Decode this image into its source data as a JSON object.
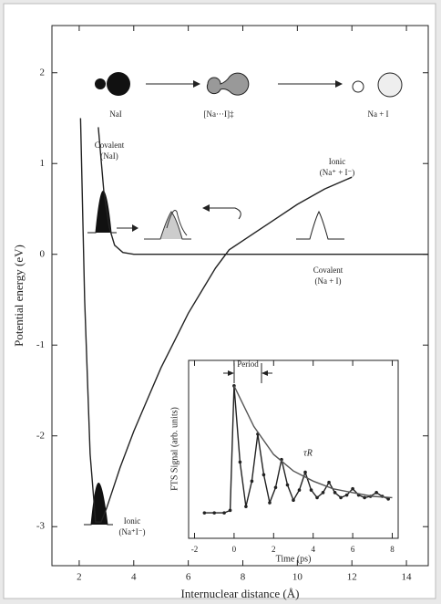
{
  "chart_data": [
    {
      "type": "line",
      "xlabel": "Internuclear distance (Å)",
      "ylabel": "Potential energy (eV)",
      "xlim": [
        1,
        14.8
      ],
      "ylim": [
        -3.43,
        2.52
      ],
      "xticks": [
        2,
        4,
        6,
        8,
        10,
        12,
        14
      ],
      "yticks": [
        -3,
        -2,
        -1,
        0,
        1,
        2
      ],
      "series": [
        {
          "color": "#222222",
          "x": [
            2.05,
            2.2,
            2.4,
            2.6,
            2.8,
            3.0,
            3.5,
            4.0,
            4.5,
            5.0,
            5.5,
            6.0,
            6.5,
            7.0,
            7.5,
            8,
            9,
            10,
            11,
            12
          ],
          "values": [
            1.5,
            -0.5,
            -2.2,
            -2.95,
            -2.95,
            -2.8,
            -2.35,
            -1.95,
            -1.6,
            -1.25,
            -0.95,
            -0.65,
            -0.4,
            -0.15,
            0.05,
            0.15,
            0.35,
            0.55,
            0.72,
            0.85
          ]
        },
        {
          "color": "#222222",
          "x": [
            2.7,
            2.9,
            3.1,
            3.3,
            3.6,
            4,
            5,
            6,
            7,
            8,
            10,
            12,
            14.8
          ],
          "values": [
            1.4,
            0.7,
            0.3,
            0.1,
            0.02,
            0,
            0,
            0,
            0,
            0,
            0,
            0,
            0
          ]
        }
      ],
      "annotations": [
        [
          "Covalent",
          "(NaI)"
        ],
        [
          "Ionic",
          "(Na⁺ + I⁻)"
        ],
        [
          "Covalent",
          "(Na + I)"
        ],
        [
          "Ionic",
          "(Na⁺I⁻)"
        ]
      ],
      "species": [
        "NaI",
        "[Na···I]‡",
        "Na + I"
      ]
    },
    {
      "type": "line",
      "xlabel": "Time (ps)",
      "ylabel": "FTS Signal (arb. units)",
      "xlim": [
        -2.3,
        8.3
      ],
      "ylim": [
        -0.2,
        1.2
      ],
      "xticks": [
        -2,
        0,
        2,
        4,
        6,
        8
      ],
      "annotations": [
        "Period",
        "τR"
      ],
      "series": [
        {
          "color": "#222222",
          "x": [
            -1.5,
            -1,
            -0.5,
            -0.2,
            0,
            0.3,
            0.6,
            0.9,
            1.2,
            1.5,
            1.8,
            2.1,
            2.4,
            2.7,
            3.0,
            3.3,
            3.6,
            3.9,
            4.2,
            4.5,
            4.8,
            5.1,
            5.4,
            5.7,
            6.0,
            6.3,
            6.6,
            6.9,
            7.2,
            7.5,
            7.8
          ],
          "values": [
            0,
            0,
            0,
            0.02,
            1.0,
            0.4,
            0.05,
            0.25,
            0.62,
            0.3,
            0.08,
            0.2,
            0.42,
            0.22,
            0.1,
            0.18,
            0.32,
            0.18,
            0.12,
            0.16,
            0.24,
            0.16,
            0.12,
            0.14,
            0.19,
            0.14,
            0.12,
            0.13,
            0.16,
            0.13,
            0.11
          ]
        },
        {
          "color": "#555555",
          "x": [
            0,
            1,
            2,
            3,
            4,
            5,
            6,
            7,
            8
          ],
          "values": [
            1.0,
            0.68,
            0.46,
            0.33,
            0.25,
            0.19,
            0.16,
            0.13,
            0.12
          ]
        }
      ]
    }
  ]
}
